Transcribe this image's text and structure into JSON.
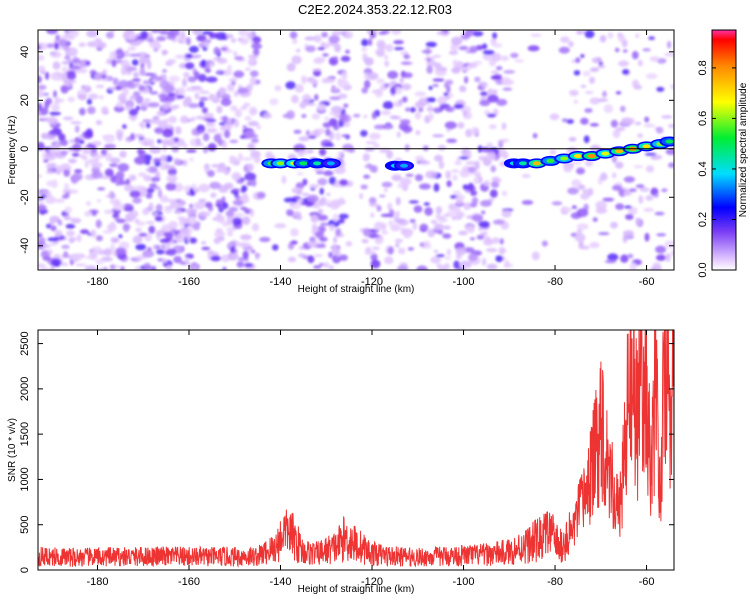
{
  "title": "C2E2.2024.353.22.12.R03",
  "chart_data": [
    {
      "type": "heatmap",
      "xlabel": "Height of straight line (km)",
      "ylabel": "Frequency (Hz)",
      "xlim": [
        -193,
        -54
      ],
      "ylim": [
        -50,
        49
      ],
      "xticks": [
        -180,
        -160,
        -140,
        -120,
        -100,
        -80,
        -60
      ],
      "yticks": [
        -40,
        -20,
        0,
        20,
        40
      ],
      "colorbar": {
        "label": "Normalized spectral amplitude",
        "range": [
          0,
          0.95
        ],
        "ticks": [
          0.0,
          0.2,
          0.4,
          0.6,
          0.8
        ]
      },
      "gaps_x_ranges": [
        [
          -145,
          -138
        ],
        [
          -125,
          -122
        ],
        [
          -112,
          -110
        ],
        [
          -90,
          -78
        ]
      ],
      "signal_track": [
        {
          "x": -142,
          "y": -6,
          "amp": 0.55
        },
        {
          "x": -140,
          "y": -6,
          "amp": 0.6
        },
        {
          "x": -137,
          "y": -6,
          "amp": 0.65
        },
        {
          "x": -135,
          "y": -6,
          "amp": 0.5
        },
        {
          "x": -132,
          "y": -6,
          "amp": 0.45
        },
        {
          "x": -129,
          "y": -6,
          "amp": 0.35
        },
        {
          "x": -115,
          "y": -7,
          "amp": 0.4
        },
        {
          "x": -113,
          "y": -7,
          "amp": 0.35
        },
        {
          "x": -89,
          "y": -6,
          "amp": 0.4
        },
        {
          "x": -87,
          "y": -6,
          "amp": 0.45
        },
        {
          "x": -84,
          "y": -6,
          "amp": 0.75
        },
        {
          "x": -81,
          "y": -5,
          "amp": 0.55
        },
        {
          "x": -78,
          "y": -4,
          "amp": 0.6
        },
        {
          "x": -75,
          "y": -3,
          "amp": 0.7
        },
        {
          "x": -72,
          "y": -3,
          "amp": 0.8
        },
        {
          "x": -69,
          "y": -2,
          "amp": 0.65
        },
        {
          "x": -66,
          "y": -1,
          "amp": 0.75
        },
        {
          "x": -63,
          "y": 0,
          "amp": 0.8
        },
        {
          "x": -60,
          "y": 1,
          "amp": 0.7
        },
        {
          "x": -57,
          "y": 2,
          "amp": 0.6
        },
        {
          "x": -55,
          "y": 3,
          "amp": 0.5
        }
      ]
    },
    {
      "type": "line",
      "xlabel": "Height of straight line (km)",
      "ylabel": "SNR (10 * v/v)",
      "xlim": [
        -193,
        -54
      ],
      "ylim": [
        0,
        2650
      ],
      "xticks": [
        -180,
        -160,
        -140,
        -120,
        -100,
        -80,
        -60
      ],
      "yticks": [
        0,
        500,
        1000,
        1500,
        2000,
        2500
      ],
      "color": "#ee3333",
      "series": [
        {
          "x": [
            -193,
            -185,
            -175,
            -165,
            -155,
            -145,
            -141,
            -139,
            -137,
            -135,
            -132,
            -128,
            -126,
            -124,
            -120,
            -115,
            -110,
            -105,
            -100,
            -95,
            -90,
            -86,
            -83,
            -81,
            -79,
            -77,
            -75,
            -73,
            -71,
            -70,
            -68,
            -66,
            -64,
            -63,
            -62,
            -61,
            -60,
            -59,
            -58,
            -57,
            -56,
            -55,
            -54
          ],
          "y": [
            150,
            140,
            145,
            150,
            145,
            150,
            250,
            450,
            350,
            200,
            180,
            250,
            350,
            300,
            180,
            150,
            140,
            150,
            160,
            170,
            200,
            280,
            350,
            420,
            250,
            350,
            600,
            900,
            1300,
            1700,
            1100,
            600,
            1800,
            2300,
            1600,
            2200,
            1900,
            1100,
            2100,
            800,
            2300,
            1800,
            2200
          ]
        }
      ]
    }
  ]
}
